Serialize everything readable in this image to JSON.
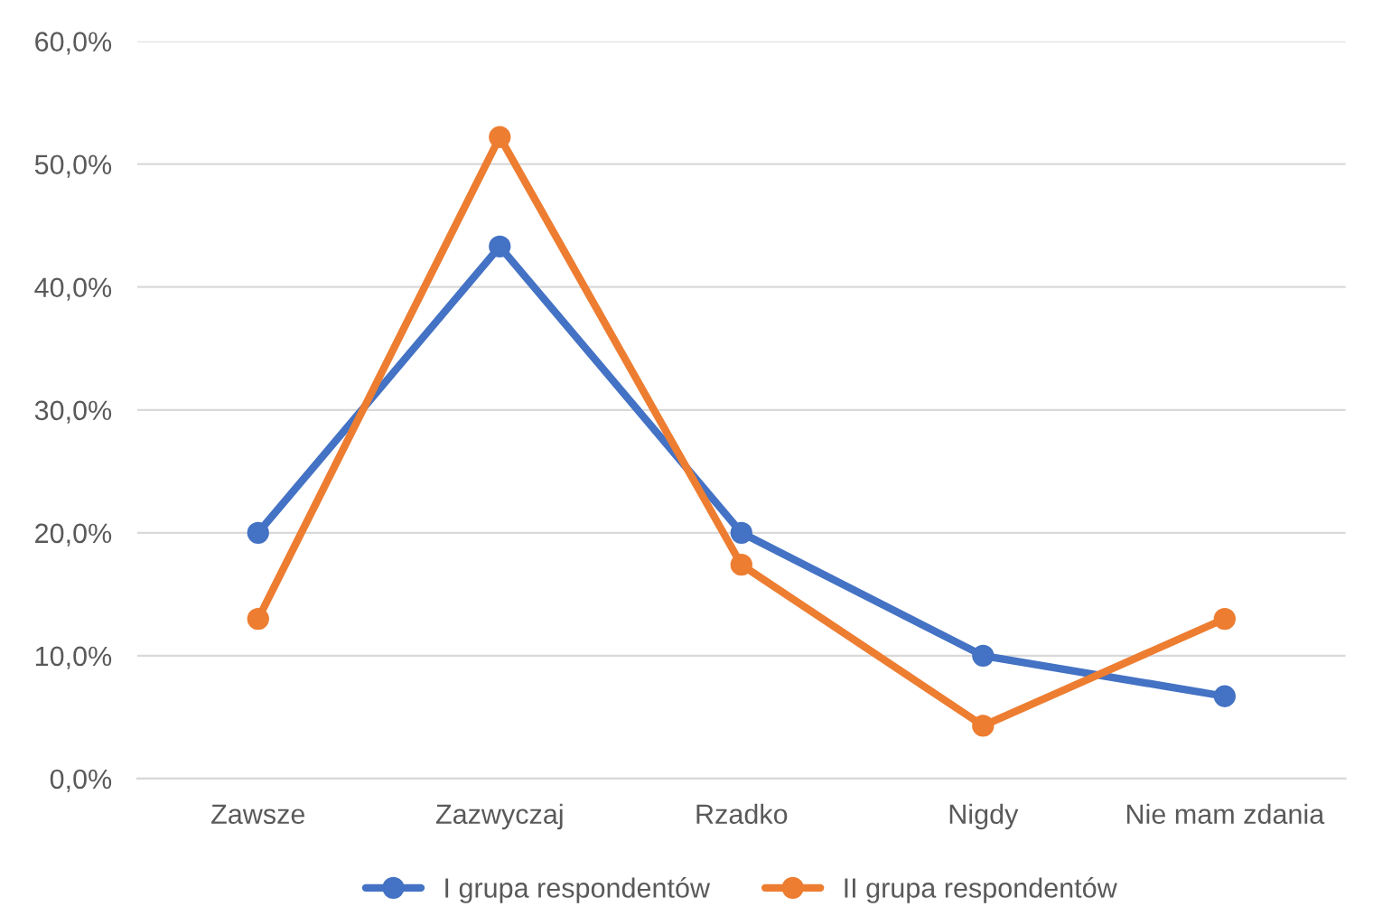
{
  "chart_data": {
    "type": "line",
    "categories": [
      "Zawsze",
      "Zazwyczaj",
      "Rzadko",
      "Nigdy",
      "Nie mam zdania"
    ],
    "series": [
      {
        "name": "I grupa respondentów",
        "color": "#4472c4",
        "values": [
          20.0,
          43.3,
          20.0,
          10.0,
          6.7
        ]
      },
      {
        "name": "II grupa respondentów",
        "color": "#ed7d31",
        "values": [
          13.0,
          52.2,
          17.4,
          4.3,
          13.0
        ]
      }
    ],
    "ylim": [
      0,
      60
    ],
    "yticks": [
      {
        "value": 0,
        "label": "0,0%"
      },
      {
        "value": 10,
        "label": "10,0%"
      },
      {
        "value": 20,
        "label": "20,0%"
      },
      {
        "value": 30,
        "label": "30,0%"
      },
      {
        "value": 40,
        "label": "40,0%"
      },
      {
        "value": 50,
        "label": "50,0%"
      },
      {
        "value": 60,
        "label": "60,0%"
      }
    ],
    "grid": "y",
    "legend": "bottom",
    "marker": "circle",
    "line_style": "solid"
  }
}
